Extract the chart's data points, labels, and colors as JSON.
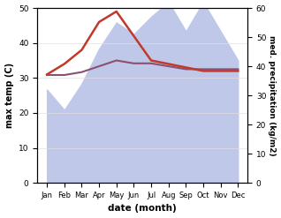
{
  "months": [
    "Jan",
    "Feb",
    "Mar",
    "Apr",
    "May",
    "Jun",
    "Jul",
    "Aug",
    "Sep",
    "Oct",
    "Nov",
    "Dec"
  ],
  "month_indices": [
    0,
    1,
    2,
    3,
    4,
    5,
    6,
    7,
    8,
    9,
    10,
    11
  ],
  "temp_max": [
    31,
    34,
    38,
    46,
    49,
    42,
    35,
    34,
    33,
    32,
    32,
    32
  ],
  "precip_fill": [
    32,
    25,
    34,
    46,
    55,
    51,
    57,
    62,
    52,
    62,
    52,
    42
  ],
  "precip_line": [
    37,
    37,
    38,
    40,
    42,
    41,
    41,
    40,
    39,
    39,
    39,
    39
  ],
  "ylabel_left": "max temp (C)",
  "ylabel_right": "med. precipitation (kg/m2)",
  "xlabel": "date (month)",
  "ylim_left": [
    0,
    50
  ],
  "ylim_right": [
    0,
    60
  ],
  "temp_color": "#c0392b",
  "precip_fill_color": "#bfc8e8",
  "precip_line_color": "#8b5070",
  "bg_color": "#ffffff"
}
